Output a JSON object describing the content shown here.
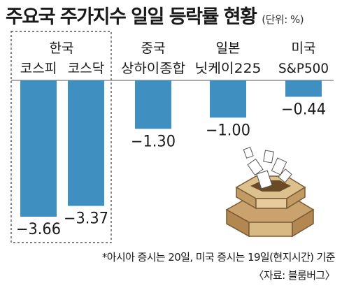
{
  "header": {
    "title": "주요국 주가지수 일일 등락률 현황",
    "unit": "(단위: %)"
  },
  "chart_data": {
    "type": "bar",
    "title": "주요국 주가지수 일일 등락률 현황",
    "unit": "(단위: %)",
    "groups": [
      {
        "label": "한국",
        "members": [
          "코스피",
          "코스닥"
        ]
      },
      {
        "label": "중국",
        "members": [
          "상하이종합"
        ]
      },
      {
        "label": "일본",
        "members": [
          "닛케이225"
        ]
      },
      {
        "label": "미국",
        "members": [
          "S&P500"
        ]
      }
    ],
    "categories": [
      "코스피",
      "코스닥",
      "상하이종합",
      "닛케이225",
      "S&P500"
    ],
    "values": [
      -3.66,
      -3.37,
      -1.3,
      -1.0,
      -0.44
    ],
    "value_labels": [
      "−3.66",
      "−3.37",
      "−1.30",
      "−1.00",
      "−0.44"
    ],
    "bar_color": "#3f8fc0",
    "highlight_box": "한국",
    "grid": false
  },
  "footer": {
    "note": "*아시아 증시는 20일, 미국 증시는 19일(현지시간) 기준",
    "source": "〈자료: 블룸버그〉"
  }
}
